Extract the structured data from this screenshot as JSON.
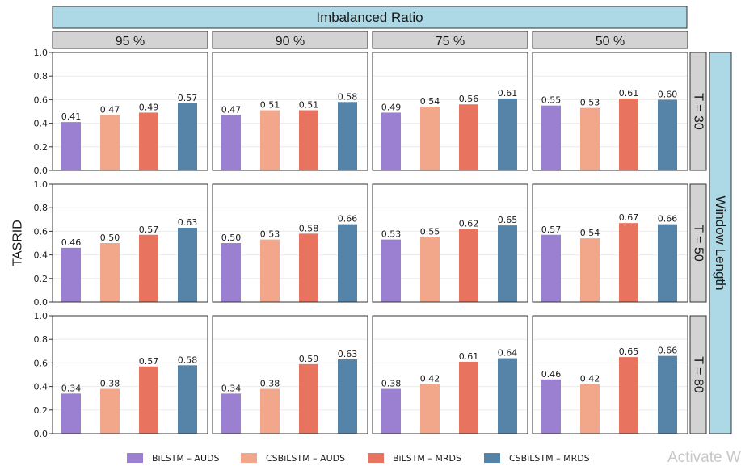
{
  "chart_data": {
    "type": "bar",
    "title": "Imbalanced Ratio",
    "ylabel": "TASRID",
    "row_strip_title": "Window Length",
    "ylim": [
      0,
      1.0
    ],
    "yticks": [
      "0.0",
      "0.2",
      "0.4",
      "0.6",
      "0.8",
      "1.0"
    ],
    "columns": [
      "95 %",
      "90 %",
      "75 %",
      "50 %"
    ],
    "rows": [
      "T = 30",
      "T = 50",
      "T = 80"
    ],
    "categories": [
      "BiLSTM – AUDS",
      "CSBiLSTM – AUDS",
      "BiLSTM – MRDS",
      "CSBiLSTM – MRDS"
    ],
    "colors": [
      "#9b7fd1",
      "#f2a68a",
      "#e8735f",
      "#5683a8"
    ],
    "legend_position": "bottom",
    "panels": [
      {
        "row": "T = 30",
        "column": "95 %",
        "values": [
          0.41,
          0.47,
          0.49,
          0.57
        ],
        "labels": [
          "0.41",
          "0.47",
          "0.49",
          "0.57"
        ]
      },
      {
        "row": "T = 30",
        "column": "90 %",
        "values": [
          0.47,
          0.51,
          0.51,
          0.58
        ],
        "labels": [
          "0.47",
          "0.51",
          "0.51",
          "0.58"
        ]
      },
      {
        "row": "T = 30",
        "column": "75 %",
        "values": [
          0.49,
          0.54,
          0.56,
          0.61
        ],
        "labels": [
          "0.49",
          "0.54",
          "0.56",
          "0.61"
        ]
      },
      {
        "row": "T = 30",
        "column": "50 %",
        "values": [
          0.55,
          0.53,
          0.61,
          0.6
        ],
        "labels": [
          "0.55",
          "0.53",
          "0.61",
          "0.60"
        ]
      },
      {
        "row": "T = 50",
        "column": "95 %",
        "values": [
          0.46,
          0.5,
          0.57,
          0.63
        ],
        "labels": [
          "0.46",
          "0.50",
          "0.57",
          "0.63"
        ]
      },
      {
        "row": "T = 50",
        "column": "90 %",
        "values": [
          0.5,
          0.53,
          0.58,
          0.66
        ],
        "labels": [
          "0.50",
          "0.53",
          "0.58",
          "0.66"
        ]
      },
      {
        "row": "T = 50",
        "column": "75 %",
        "values": [
          0.53,
          0.55,
          0.62,
          0.65
        ],
        "labels": [
          "0.53",
          "0.55",
          "0.62",
          "0.65"
        ]
      },
      {
        "row": "T = 50",
        "column": "50 %",
        "values": [
          0.57,
          0.54,
          0.67,
          0.66
        ],
        "labels": [
          "0.57",
          "0.54",
          "0.67",
          "0.66"
        ]
      },
      {
        "row": "T = 80",
        "column": "95 %",
        "values": [
          0.34,
          0.38,
          0.57,
          0.58
        ],
        "labels": [
          "0.34",
          "0.38",
          "0.57",
          "0.58"
        ]
      },
      {
        "row": "T = 80",
        "column": "90 %",
        "values": [
          0.34,
          0.38,
          0.59,
          0.63
        ],
        "labels": [
          "0.34",
          "0.38",
          "0.59",
          "0.63"
        ]
      },
      {
        "row": "T = 80",
        "column": "75 %",
        "values": [
          0.38,
          0.42,
          0.61,
          0.64
        ],
        "labels": [
          "0.38",
          "0.42",
          "0.61",
          "0.64"
        ]
      },
      {
        "row": "T = 80",
        "column": "50 %",
        "values": [
          0.46,
          0.42,
          0.65,
          0.66
        ],
        "labels": [
          "0.46",
          "0.42",
          "0.65",
          "0.66"
        ]
      }
    ]
  },
  "watermark": "Activate W"
}
